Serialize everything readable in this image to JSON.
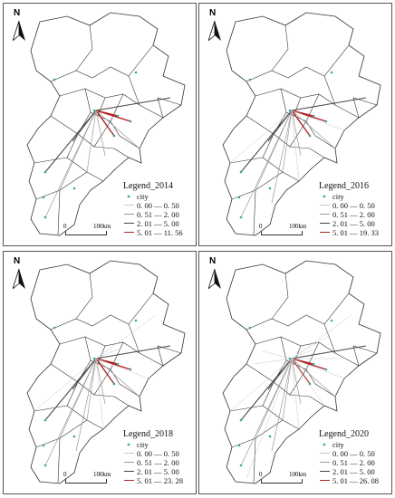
{
  "north_label": "N",
  "scale_zero": "0",
  "scale_distance": "100km",
  "legend_city": "city",
  "classes": [
    {
      "range": "0. 00 — 0. 50",
      "color": "#c8c8c8",
      "width": 0.6
    },
    {
      "range": "0. 51 — 2. 00",
      "color": "#9a9a9a",
      "width": 0.9
    },
    {
      "range": "2. 01 — 5. 00",
      "color": "#444444",
      "width": 1.2
    }
  ],
  "strongest_color": "#b22222",
  "city_color": "#3aa6a6",
  "panels": [
    {
      "title": "Legend_2014",
      "top_range": "5. 01 — 11. 56",
      "line_count": 11
    },
    {
      "title": "Legend_2016",
      "top_range": "5. 01 — 19. 33",
      "line_count": 15
    },
    {
      "title": "Legend_2018",
      "top_range": "5. 01 — 23. 28",
      "line_count": 17
    },
    {
      "title": "Legend_2020",
      "top_range": "5. 01 — 26. 08",
      "line_count": 24
    }
  ]
}
